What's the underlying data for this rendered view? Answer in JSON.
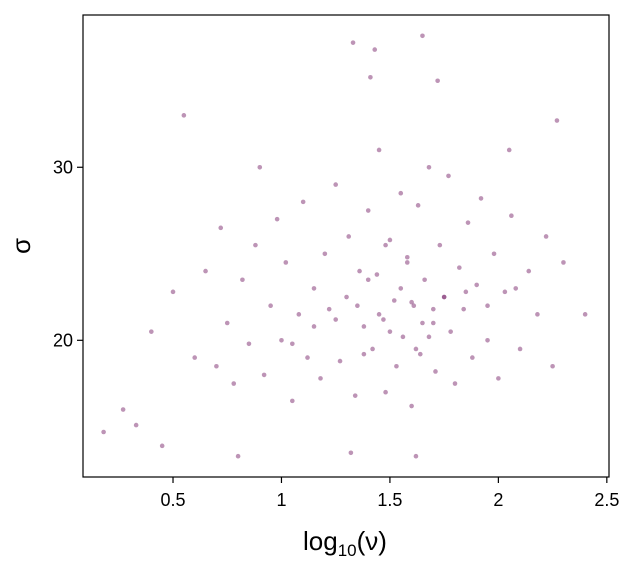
{
  "chart_data": {
    "type": "scatter",
    "xlabel": [
      "log",
      "10",
      "(ν)"
    ],
    "ylabel": "σ",
    "xlim": [
      0.085,
      2.51
    ],
    "ylim": [
      12.1,
      38.8
    ],
    "xticks": [
      0.5,
      1.0,
      1.5,
      2.0,
      2.5
    ],
    "yticks": [
      20,
      30
    ],
    "series": [
      {
        "color": "#7b2a6e",
        "x": [
          0.18,
          0.55,
          1.33,
          1.43,
          1.65,
          1.72,
          1.41,
          2.27,
          2.4,
          0.45,
          0.8,
          1.62,
          1.32,
          0.27,
          0.33,
          0.9,
          2.05,
          2.3,
          0.4,
          0.5,
          0.6,
          0.65,
          0.7,
          0.72,
          0.75,
          0.78,
          0.82,
          0.85,
          0.88,
          0.92,
          0.95,
          0.98,
          1.0,
          1.02,
          1.05,
          1.08,
          1.1,
          1.12,
          1.15,
          1.18,
          1.2,
          1.22,
          1.25,
          1.27,
          1.3,
          1.31,
          1.34,
          1.36,
          1.38,
          1.4,
          1.42,
          1.44,
          1.45,
          1.47,
          1.48,
          1.5,
          1.52,
          1.53,
          1.55,
          1.56,
          1.58,
          1.6,
          1.61,
          1.63,
          1.64,
          1.66,
          1.68,
          1.7,
          1.71,
          1.73,
          1.75,
          1.77,
          1.78,
          1.8,
          1.82,
          1.84,
          1.86,
          1.88,
          1.9,
          1.92,
          1.95,
          1.98,
          2.0,
          2.03,
          2.06,
          2.1,
          2.14,
          2.18,
          2.22,
          2.25,
          1.35,
          1.45,
          1.55,
          1.65,
          1.75,
          1.5,
          1.6,
          1.7,
          1.4,
          1.85,
          1.25,
          1.15,
          1.05,
          1.95,
          2.08,
          1.58,
          1.62,
          1.48,
          1.68,
          1.38
        ],
        "values": [
          14.7,
          33.0,
          37.2,
          36.8,
          37.6,
          35.0,
          35.2,
          32.7,
          21.5,
          13.9,
          13.3,
          13.3,
          13.5,
          16.0,
          15.1,
          30.0,
          31.0,
          24.5,
          20.5,
          22.8,
          19.0,
          24.0,
          18.5,
          26.5,
          21.0,
          17.5,
          23.5,
          19.8,
          25.5,
          18.0,
          22.0,
          27.0,
          20.0,
          24.5,
          16.5,
          21.5,
          28.0,
          19.0,
          23.0,
          17.8,
          25.0,
          21.8,
          29.0,
          18.8,
          22.5,
          26.0,
          16.8,
          24.0,
          20.8,
          27.5,
          19.5,
          23.8,
          31.0,
          21.2,
          17.0,
          25.8,
          22.3,
          18.5,
          28.5,
          20.2,
          24.8,
          16.2,
          22.0,
          27.8,
          19.2,
          23.5,
          30.0,
          21.0,
          18.2,
          25.5,
          22.5,
          29.5,
          20.5,
          17.5,
          24.2,
          21.8,
          26.8,
          19.0,
          23.2,
          28.2,
          20.0,
          25.0,
          17.8,
          22.8,
          27.2,
          19.5,
          24.0,
          21.5,
          26.0,
          18.5,
          22.0,
          21.5,
          23.0,
          21.0,
          22.5,
          20.5,
          22.2,
          21.8,
          23.5,
          22.8,
          21.2,
          20.8,
          19.8,
          22.0,
          23.0,
          24.5,
          19.5,
          25.5,
          20.2,
          19.2
        ]
      }
    ]
  }
}
